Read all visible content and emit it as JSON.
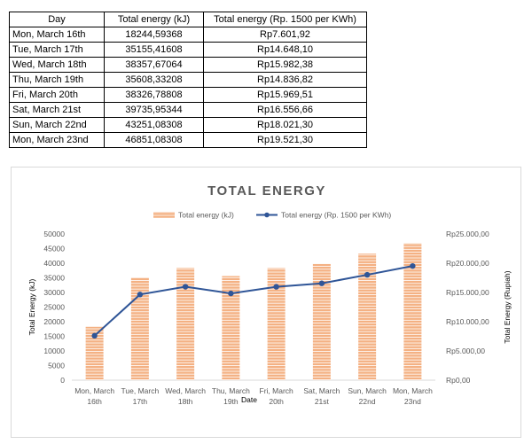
{
  "table": {
    "headers": [
      "Day",
      "Total energy (kJ)",
      "Total energy (Rp. 1500 per KWh)"
    ],
    "rows": [
      [
        "Mon, March 16th",
        "18244,59368",
        "Rp7.601,92"
      ],
      [
        "Tue, March 17th",
        "35155,41608",
        "Rp14.648,10"
      ],
      [
        "Wed, March 18th",
        "38357,67064",
        "Rp15.982,38"
      ],
      [
        "Thu, March 19th",
        "35608,33208",
        "Rp14.836,82"
      ],
      [
        "Fri, March 20th",
        "38326,78808",
        "Rp15.969,51"
      ],
      [
        "Sat, March 21st",
        "39735,95344",
        "Rp16.556,66"
      ],
      [
        "Sun, March 22nd",
        "43251,08308",
        "Rp18.021,30"
      ],
      [
        "Mon, March 23nd",
        "46851,08308",
        "Rp19.521,30"
      ]
    ]
  },
  "colors": {
    "bar": "#f4b183",
    "bar_stripe": "#ffffff",
    "line": "#2f5597",
    "grid": "#d9d9d9",
    "title": "#595959"
  },
  "chart_data": {
    "type": "bar",
    "title": "TOTAL ENERGY",
    "xlabel": "Date",
    "ylabel": "Total Energy (kJ)",
    "y2label": "Total Energy (Rupiah)",
    "legend_position": "top",
    "categories": [
      [
        "Mon, March",
        "16th"
      ],
      [
        "Tue, March",
        "17th"
      ],
      [
        "Wed, March",
        "18th"
      ],
      [
        "Thu, March",
        "19th"
      ],
      [
        "Fri, March",
        "20th"
      ],
      [
        "Sat, March",
        "21st"
      ],
      [
        "Sun, March",
        "22nd"
      ],
      [
        "Mon, March",
        "23nd"
      ]
    ],
    "ylim": [
      0,
      50000
    ],
    "yticks": [
      "0",
      "5000",
      "10000",
      "15000",
      "20000",
      "25000",
      "30000",
      "35000",
      "40000",
      "45000",
      "50000"
    ],
    "y2lim": [
      0,
      25000
    ],
    "y2ticks": [
      "Rp0,00",
      "Rp5.000,00",
      "Rp10.000,00",
      "Rp15.000,00",
      "Rp20.000,00",
      "Rp25.000,00"
    ],
    "series": [
      {
        "name": "Total energy (kJ)",
        "type": "bar",
        "axis": "left",
        "values": [
          18244.59,
          35155.42,
          38357.67,
          35608.33,
          38326.79,
          39735.95,
          43251.08,
          46851.08
        ]
      },
      {
        "name": "Total energy (Rp. 1500 per KWh)",
        "type": "line",
        "axis": "right",
        "values": [
          7601.92,
          14648.1,
          15982.38,
          14836.82,
          15969.51,
          16556.66,
          18021.3,
          19521.3
        ]
      }
    ]
  }
}
